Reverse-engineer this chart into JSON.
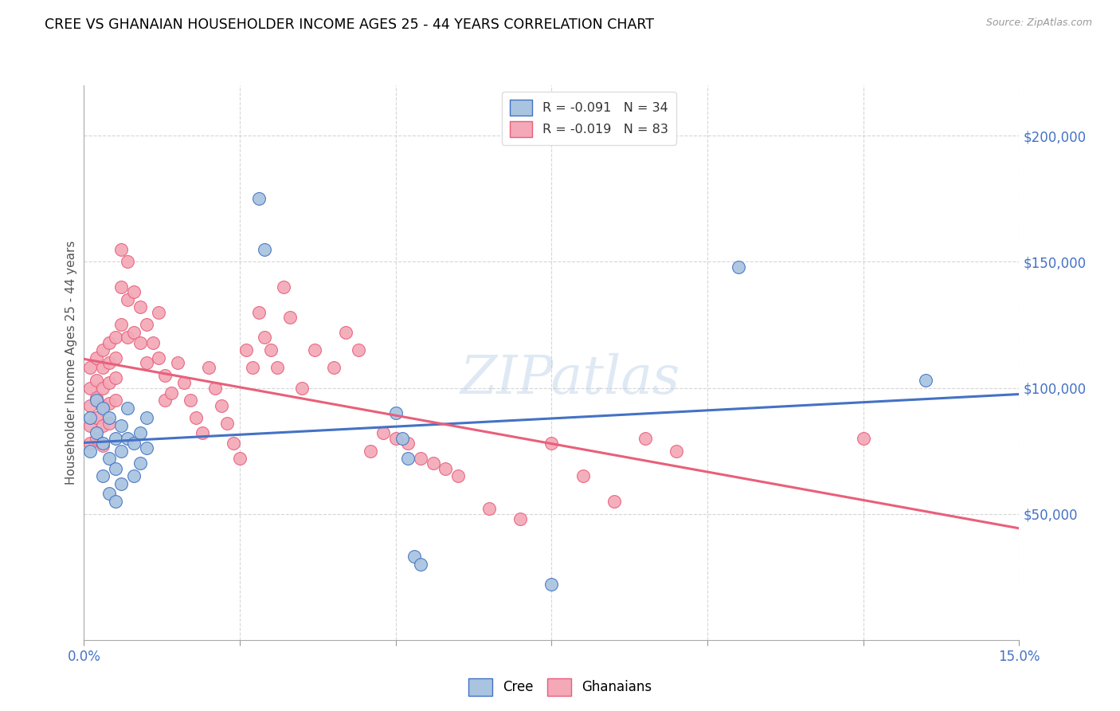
{
  "title": "CREE VS GHANAIAN HOUSEHOLDER INCOME AGES 25 - 44 YEARS CORRELATION CHART",
  "source": "Source: ZipAtlas.com",
  "ylabel": "Householder Income Ages 25 - 44 years",
  "xlim": [
    0.0,
    0.15
  ],
  "ylim": [
    0,
    220000
  ],
  "xticks": [
    0.0,
    0.025,
    0.05,
    0.075,
    0.1,
    0.125,
    0.15
  ],
  "ytick_vals": [
    50000,
    100000,
    150000,
    200000
  ],
  "ytick_labels": [
    "$50,000",
    "$100,000",
    "$150,000",
    "$200,000"
  ],
  "cree_color": "#a8c4e0",
  "ghanaian_color": "#f4a8b8",
  "cree_line_color": "#4472c4",
  "ghanaian_line_color": "#e8607a",
  "legend_line1": "R = -0.091   N = 34",
  "legend_line2": "R = -0.019   N = 83",
  "watermark": "ZIPatlas",
  "cree_data_x": [
    0.001,
    0.001,
    0.002,
    0.002,
    0.003,
    0.003,
    0.003,
    0.004,
    0.004,
    0.004,
    0.005,
    0.005,
    0.005,
    0.006,
    0.006,
    0.006,
    0.007,
    0.007,
    0.008,
    0.008,
    0.009,
    0.009,
    0.01,
    0.01,
    0.028,
    0.029,
    0.05,
    0.051,
    0.052,
    0.053,
    0.054,
    0.075,
    0.105,
    0.135
  ],
  "cree_data_y": [
    88000,
    75000,
    95000,
    82000,
    92000,
    78000,
    65000,
    88000,
    72000,
    58000,
    80000,
    68000,
    55000,
    85000,
    75000,
    62000,
    92000,
    80000,
    78000,
    65000,
    82000,
    70000,
    88000,
    76000,
    175000,
    155000,
    90000,
    80000,
    72000,
    33000,
    30000,
    22000,
    148000,
    103000
  ],
  "ghana_data_x": [
    0.001,
    0.001,
    0.001,
    0.001,
    0.001,
    0.002,
    0.002,
    0.002,
    0.002,
    0.002,
    0.003,
    0.003,
    0.003,
    0.003,
    0.003,
    0.003,
    0.004,
    0.004,
    0.004,
    0.004,
    0.004,
    0.005,
    0.005,
    0.005,
    0.005,
    0.006,
    0.006,
    0.006,
    0.007,
    0.007,
    0.007,
    0.008,
    0.008,
    0.009,
    0.009,
    0.01,
    0.01,
    0.011,
    0.012,
    0.012,
    0.013,
    0.013,
    0.014,
    0.015,
    0.016,
    0.017,
    0.018,
    0.019,
    0.02,
    0.021,
    0.022,
    0.023,
    0.024,
    0.025,
    0.026,
    0.027,
    0.028,
    0.029,
    0.03,
    0.031,
    0.032,
    0.033,
    0.035,
    0.037,
    0.04,
    0.042,
    0.044,
    0.046,
    0.048,
    0.05,
    0.052,
    0.054,
    0.056,
    0.058,
    0.06,
    0.065,
    0.07,
    0.075,
    0.08,
    0.085,
    0.09,
    0.095,
    0.125
  ],
  "ghana_data_y": [
    108000,
    100000,
    93000,
    85000,
    78000,
    112000,
    103000,
    96000,
    88000,
    80000,
    115000,
    108000,
    100000,
    93000,
    85000,
    77000,
    118000,
    110000,
    102000,
    94000,
    86000,
    120000,
    112000,
    104000,
    95000,
    155000,
    140000,
    125000,
    150000,
    135000,
    120000,
    138000,
    122000,
    132000,
    118000,
    125000,
    110000,
    118000,
    130000,
    112000,
    105000,
    95000,
    98000,
    110000,
    102000,
    95000,
    88000,
    82000,
    108000,
    100000,
    93000,
    86000,
    78000,
    72000,
    115000,
    108000,
    130000,
    120000,
    115000,
    108000,
    140000,
    128000,
    100000,
    115000,
    108000,
    122000,
    115000,
    75000,
    82000,
    80000,
    78000,
    72000,
    70000,
    68000,
    65000,
    52000,
    48000,
    78000,
    65000,
    55000,
    80000,
    75000,
    80000
  ]
}
